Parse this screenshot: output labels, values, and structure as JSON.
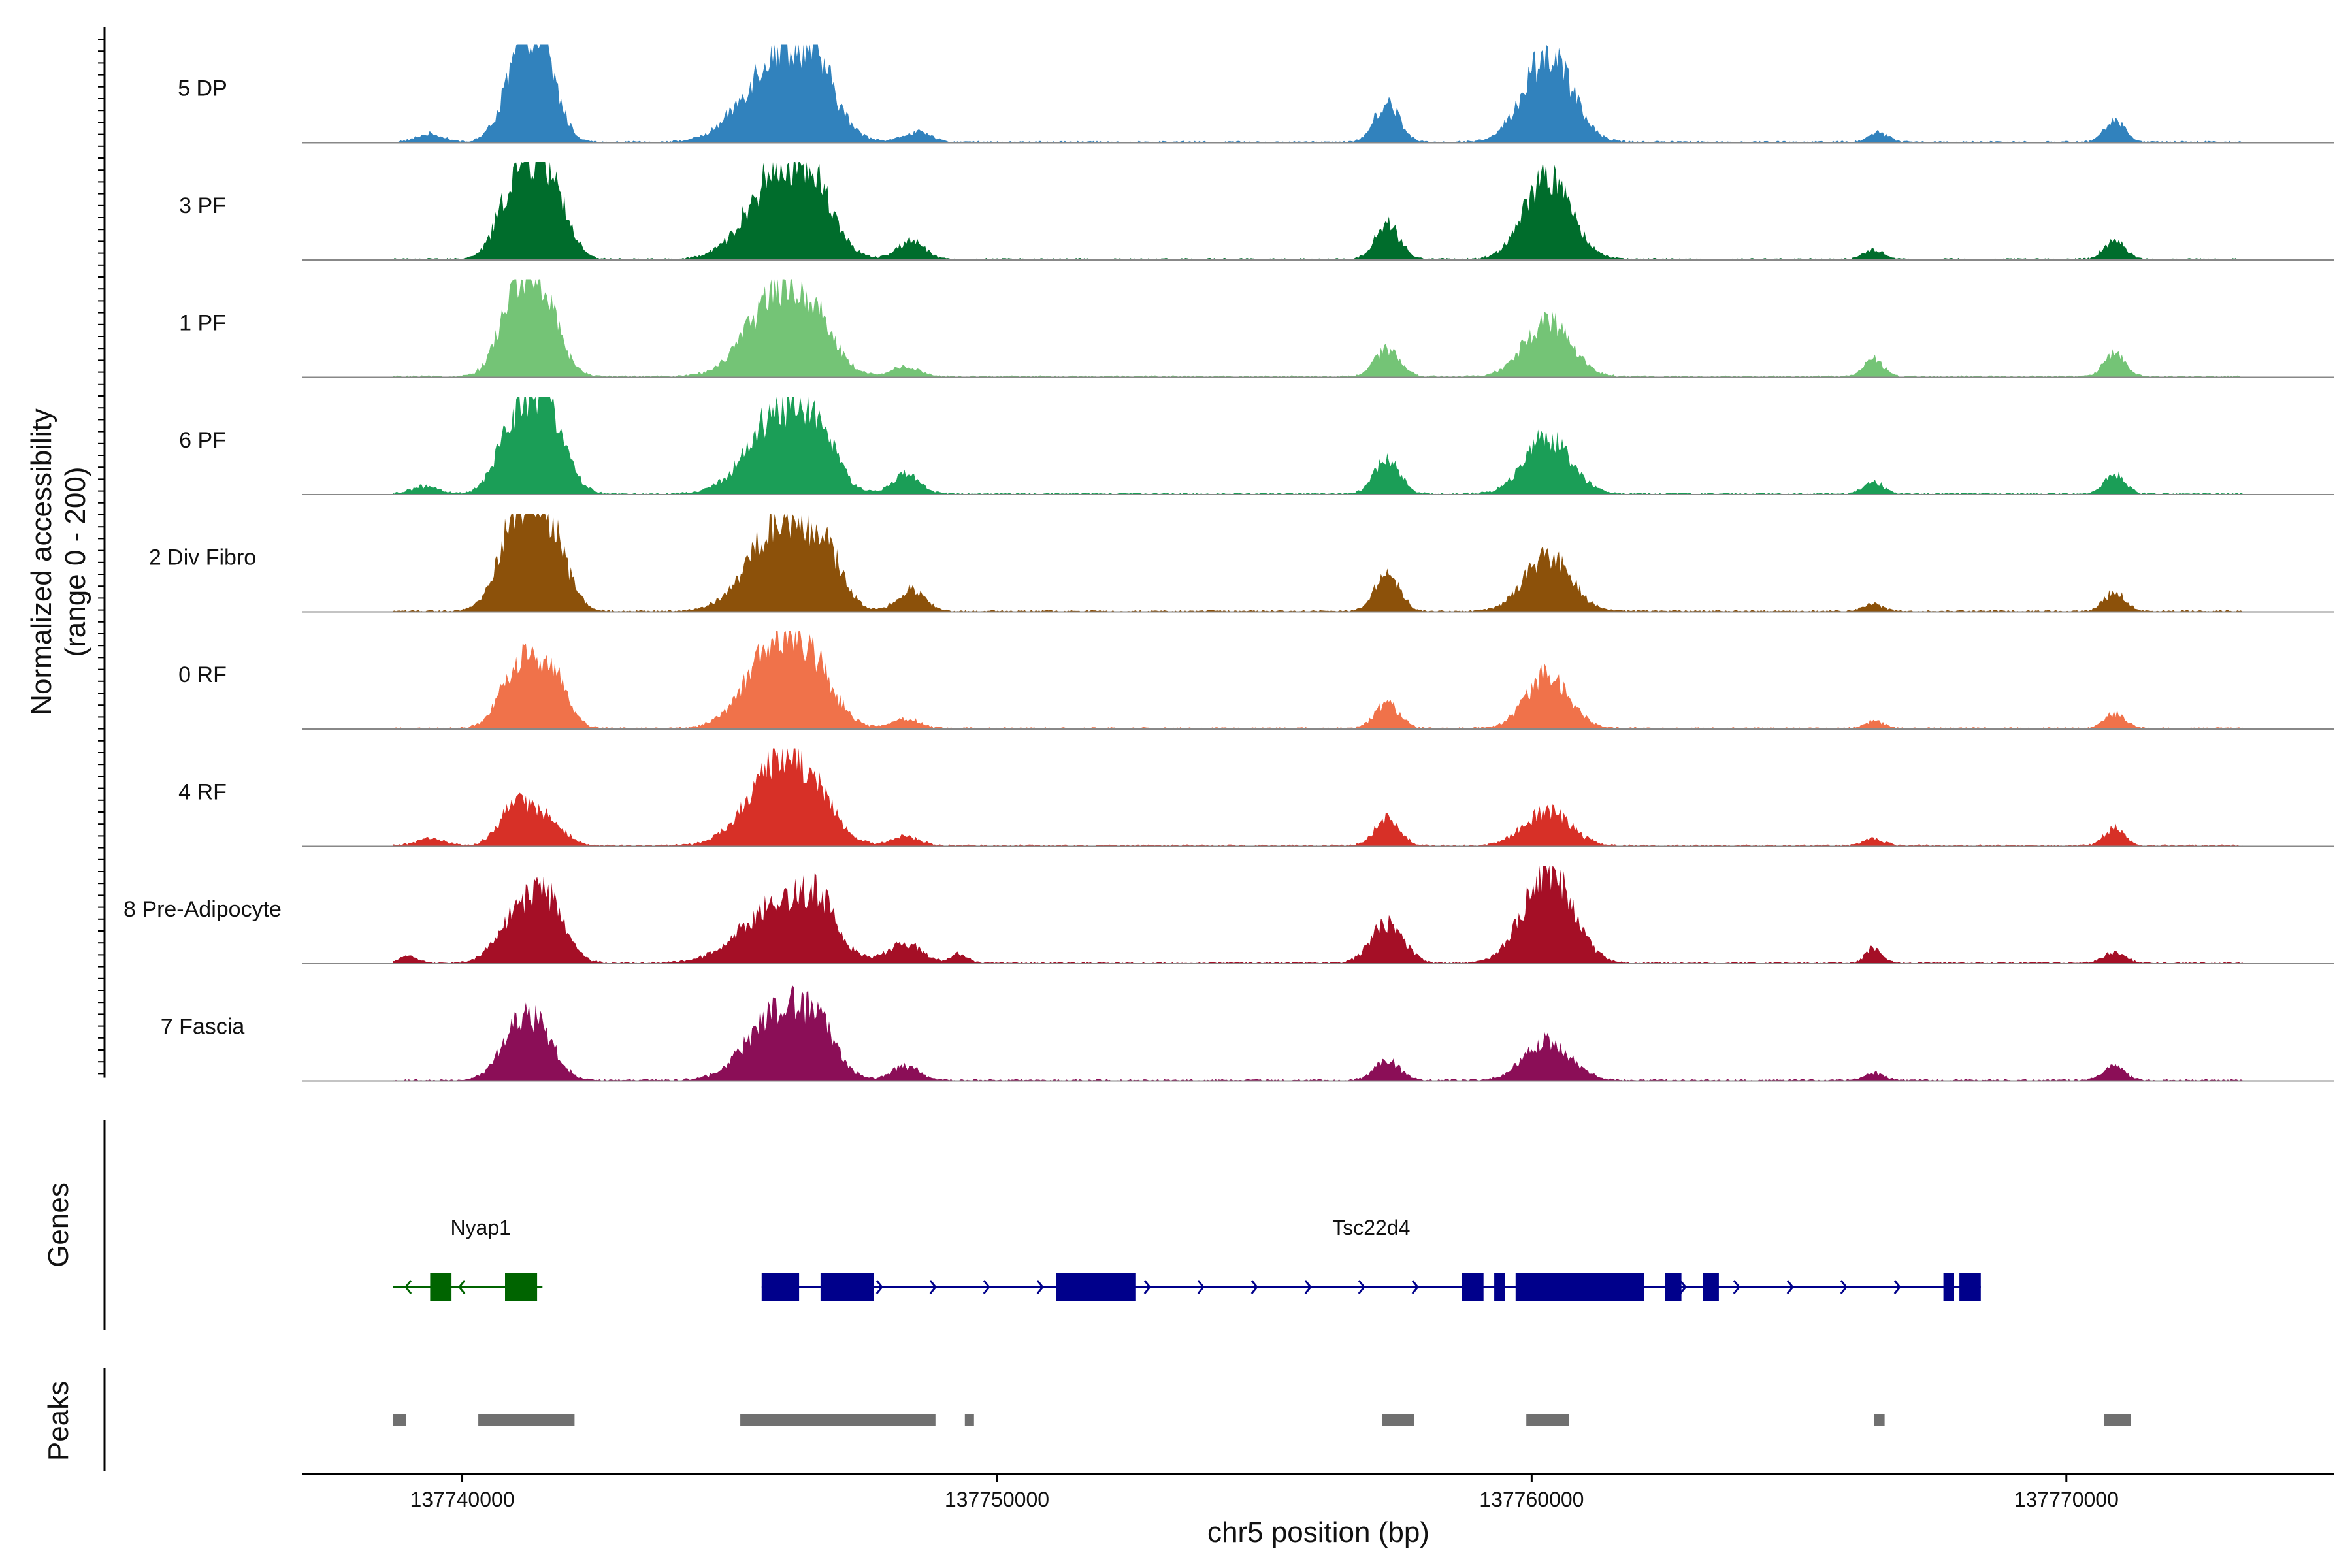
{
  "chart_data": {
    "type": "area",
    "title": "",
    "ylabel_line1": "Normalized accessibility",
    "ylabel_line2": "(range 0 - 200)",
    "xlabel": "chr5 position (bp)",
    "xlim": [
      137737000,
      137775000
    ],
    "ylim": [
      0,
      200
    ],
    "x_ticks": [
      137740000,
      137750000,
      137760000,
      137770000
    ],
    "x_tick_labels": [
      "137740000",
      "137750000",
      "137760000",
      "137770000"
    ],
    "track_start": 137738700,
    "track_end": 137773300,
    "panel_labels": {
      "genes": "Genes",
      "peaks": "Peaks"
    },
    "tracks": [
      {
        "name": "5 DP",
        "color": "#3182bd",
        "peaks": [
          [
            137739400,
            16,
            250
          ],
          [
            137741100,
            150,
            330
          ],
          [
            137741500,
            140,
            300
          ],
          [
            137746000,
            190,
            650
          ],
          [
            137746700,
            60,
            300
          ],
          [
            137748500,
            20,
            250
          ],
          [
            137757300,
            80,
            230
          ],
          [
            137760300,
            180,
            450
          ],
          [
            137766500,
            20,
            180
          ],
          [
            137770900,
            45,
            190
          ]
        ]
      },
      {
        "name": "3 PF",
        "color": "#006d2c",
        "peaks": [
          [
            137741000,
            150,
            320
          ],
          [
            137741600,
            170,
            320
          ],
          [
            137746000,
            190,
            600
          ],
          [
            137746700,
            60,
            300
          ],
          [
            137748400,
            40,
            250
          ],
          [
            137757300,
            70,
            230
          ],
          [
            137760300,
            170,
            430
          ],
          [
            137766400,
            20,
            180
          ],
          [
            137770900,
            40,
            190
          ]
        ]
      },
      {
        "name": "1 PF",
        "color": "#74c476",
        "peaks": [
          [
            137741000,
            150,
            320
          ],
          [
            137741500,
            140,
            330
          ],
          [
            137746000,
            185,
            600
          ],
          [
            137746700,
            40,
            300
          ],
          [
            137748300,
            20,
            250
          ],
          [
            137757300,
            55,
            230
          ],
          [
            137760300,
            115,
            430
          ],
          [
            137766400,
            35,
            180
          ],
          [
            137770900,
            50,
            190
          ]
        ]
      },
      {
        "name": "6 PF",
        "color": "#1b9e57",
        "peaks": [
          [
            137739300,
            15,
            250
          ],
          [
            137741000,
            140,
            330
          ],
          [
            137741600,
            170,
            330
          ],
          [
            137746000,
            175,
            600
          ],
          [
            137746700,
            60,
            300
          ],
          [
            137748300,
            40,
            250
          ],
          [
            137757300,
            75,
            230
          ],
          [
            137760300,
            115,
            430
          ],
          [
            137766400,
            25,
            180
          ],
          [
            137770900,
            40,
            190
          ]
        ]
      },
      {
        "name": "2 Div Fibro",
        "color": "#8c510a",
        "peaks": [
          [
            137741000,
            170,
            340
          ],
          [
            137741600,
            170,
            330
          ],
          [
            137746000,
            190,
            600
          ],
          [
            137746800,
            70,
            300
          ],
          [
            137748400,
            45,
            250
          ],
          [
            137757300,
            75,
            230
          ],
          [
            137760300,
            110,
            430
          ],
          [
            137766400,
            15,
            180
          ],
          [
            137770900,
            40,
            190
          ]
        ]
      },
      {
        "name": "0 RF",
        "color": "#f0724a",
        "peaks": [
          [
            137741000,
            110,
            320
          ],
          [
            137741600,
            120,
            320
          ],
          [
            137746000,
            190,
            600
          ],
          [
            137746700,
            40,
            300
          ],
          [
            137748300,
            20,
            250
          ],
          [
            137757300,
            50,
            230
          ],
          [
            137760300,
            110,
            400
          ],
          [
            137766400,
            15,
            180
          ],
          [
            137770900,
            30,
            190
          ]
        ]
      },
      {
        "name": "4 RF",
        "color": "#d73027",
        "peaks": [
          [
            137739400,
            15,
            250
          ],
          [
            137741000,
            80,
            300
          ],
          [
            137741600,
            50,
            300
          ],
          [
            137746000,
            180,
            600
          ],
          [
            137746700,
            30,
            300
          ],
          [
            137748300,
            20,
            250
          ],
          [
            137757300,
            55,
            230
          ],
          [
            137760300,
            70,
            430
          ],
          [
            137766400,
            15,
            180
          ],
          [
            137770900,
            35,
            190
          ]
        ]
      },
      {
        "name": "8 Pre-Adipocyte",
        "color": "#a50f26",
        "peaks": [
          [
            137739000,
            15,
            150
          ],
          [
            137741000,
            90,
            350
          ],
          [
            137741600,
            120,
            330
          ],
          [
            137746000,
            130,
            700
          ],
          [
            137746700,
            60,
            300
          ],
          [
            137748300,
            40,
            300
          ],
          [
            137749300,
            20,
            150
          ],
          [
            137757300,
            80,
            300
          ],
          [
            137760300,
            190,
            450
          ],
          [
            137766400,
            30,
            150
          ],
          [
            137770900,
            20,
            200
          ]
        ]
      },
      {
        "name": "7 Fascia",
        "color": "#8b0e57",
        "peaks": [
          [
            137741000,
            100,
            320
          ],
          [
            137741500,
            80,
            300
          ],
          [
            137746000,
            150,
            600
          ],
          [
            137746700,
            50,
            300
          ],
          [
            137748300,
            30,
            250
          ],
          [
            137757300,
            40,
            230
          ],
          [
            137760300,
            80,
            430
          ],
          [
            137766400,
            15,
            180
          ],
          [
            137770900,
            30,
            190
          ]
        ]
      }
    ],
    "genes": [
      {
        "name": "Nyap1",
        "color": "#006400",
        "strand": "-",
        "start": 137738700,
        "end": 137741500,
        "exons": [
          [
            137739400,
            137739800
          ],
          [
            137740800,
            137741400
          ]
        ]
      },
      {
        "name": "Tsc22d4",
        "color": "#00008b",
        "strand": "+",
        "start": 137745600,
        "end": 137768400,
        "exons": [
          [
            137745600,
            137746300
          ],
          [
            137746700,
            137747700
          ],
          [
            137751100,
            137752600
          ],
          [
            137758700,
            137759100
          ],
          [
            137759300,
            137759500
          ],
          [
            137759700,
            137762100
          ],
          [
            137762500,
            137762800
          ],
          [
            137763200,
            137763500
          ],
          [
            137767700,
            137767900
          ],
          [
            137768000,
            137768400
          ]
        ]
      }
    ],
    "peak_regions": [
      [
        137738700,
        137738950
      ],
      [
        137740300,
        137742100
      ],
      [
        137745200,
        137748850
      ],
      [
        137749400,
        137749500
      ],
      [
        137757200,
        137757800
      ],
      [
        137759900,
        137760700
      ],
      [
        137766400,
        137766600
      ],
      [
        137770700,
        137771200
      ]
    ]
  }
}
